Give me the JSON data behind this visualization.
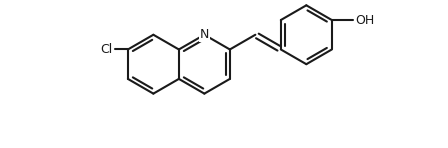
{
  "background_color": "#ffffff",
  "line_color": "#1a1a1a",
  "line_width": 1.5,
  "font_size": 9,
  "figsize": [
    4.48,
    1.48
  ],
  "dpi": 100,
  "Cl_label": "Cl",
  "N_label": "N",
  "OH_label": "OH"
}
